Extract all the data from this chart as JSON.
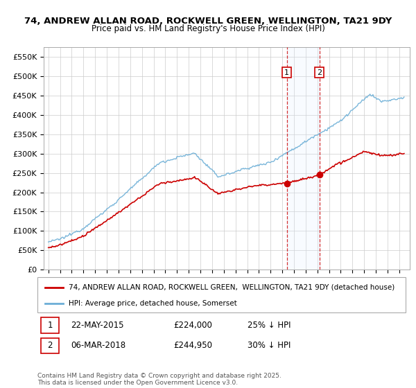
{
  "title_line1": "74, ANDREW ALLAN ROAD, ROCKWELL GREEN, WELLINGTON, TA21 9DY",
  "title_line2": "Price paid vs. HM Land Registry's House Price Index (HPI)",
  "ylim": [
    0,
    575000
  ],
  "yticks": [
    0,
    50000,
    100000,
    150000,
    200000,
    250000,
    300000,
    350000,
    400000,
    450000,
    500000,
    550000
  ],
  "ytick_labels": [
    "£0",
    "£50K",
    "£100K",
    "£150K",
    "£200K",
    "£250K",
    "£300K",
    "£350K",
    "£400K",
    "£450K",
    "£500K",
    "£550K"
  ],
  "hpi_color": "#6baed6",
  "price_color": "#cc0000",
  "vline_color": "#cc0000",
  "shade_color": "#ddeeff",
  "event1_date": 2015.38,
  "event2_date": 2018.17,
  "event1_price": 224000,
  "event2_price": 244950,
  "legend_label_price": "74, ANDREW ALLAN ROAD, ROCKWELL GREEN,  WELLINGTON, TA21 9DY (detached house)",
  "legend_label_hpi": "HPI: Average price, detached house, Somerset",
  "footnote": "Contains HM Land Registry data © Crown copyright and database right 2025.\nThis data is licensed under the Open Government Licence v3.0.",
  "background_color": "#ffffff",
  "grid_color": "#cccccc"
}
